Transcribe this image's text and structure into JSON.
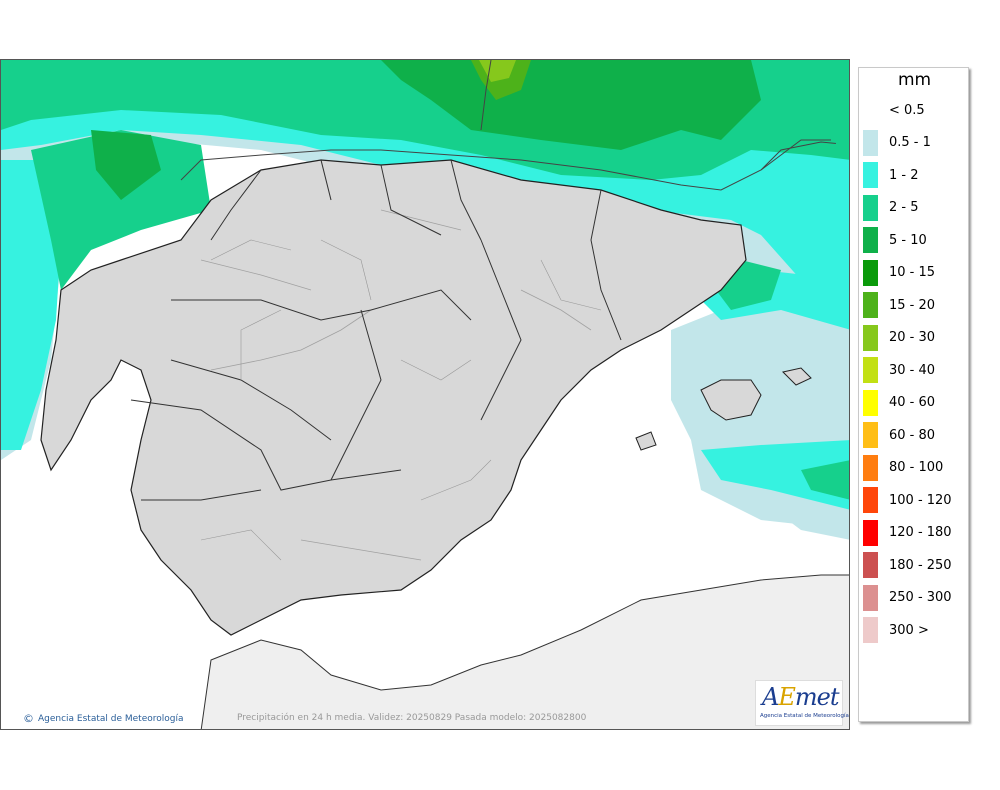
{
  "legend": {
    "unit": "mm",
    "items": [
      {
        "label": "< 0.5",
        "color": "#ffffff"
      },
      {
        "label": "0.5 - 1",
        "color": "#c2e6ea"
      },
      {
        "label": "1 - 2",
        "color": "#36f2e0"
      },
      {
        "label": "2 - 5",
        "color": "#16d08c"
      },
      {
        "label": "5 - 10",
        "color": "#0fb04a"
      },
      {
        "label": "10 - 15",
        "color": "#0a9a0a"
      },
      {
        "label": "15 - 20",
        "color": "#4db21a"
      },
      {
        "label": "20 - 30",
        "color": "#86c81c"
      },
      {
        "label": "30 - 40",
        "color": "#c2e014"
      },
      {
        "label": "40 - 60",
        "color": "#ffff00"
      },
      {
        "label": "60 - 80",
        "color": "#ffbe16"
      },
      {
        "label": "80 - 100",
        "color": "#ff7d10"
      },
      {
        "label": "100 - 120",
        "color": "#ff460a"
      },
      {
        "label": "120 - 180",
        "color": "#ff0000"
      },
      {
        "label": "180 - 250",
        "color": "#cc5050"
      },
      {
        "label": "250 - 300",
        "color": "#dc9090"
      },
      {
        "label": "300 >",
        "color": "#eecaca"
      }
    ]
  },
  "map": {
    "credit": "Agencia Estatal de Meteorología",
    "caption": "Precipitación en 24 h media. Validez: 20250829 Pasada modelo: 2025082800",
    "logo_text_a": "A",
    "logo_text_e": "E",
    "logo_text_rest": "met",
    "logo_subtitle": "Agencia Estatal de Meteorología"
  }
}
